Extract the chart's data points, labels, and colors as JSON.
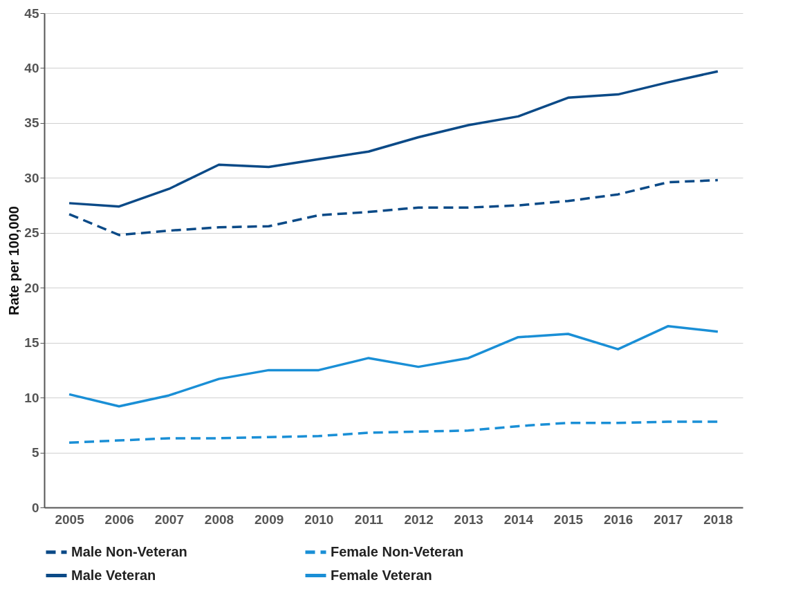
{
  "chart_data": {
    "type": "line",
    "ylabel": "Rate per 100,000",
    "categories": [
      "2005",
      "2006",
      "2007",
      "2008",
      "2009",
      "2010",
      "2011",
      "2012",
      "2013",
      "2014",
      "2015",
      "2016",
      "2017",
      "2018"
    ],
    "series": [
      {
        "name": "Male Non-Veteran",
        "color": "#0b4a87",
        "line_style": "dashed",
        "values": [
          26.7,
          24.8,
          25.2,
          25.5,
          25.6,
          26.6,
          26.9,
          27.3,
          27.3,
          27.5,
          27.9,
          28.5,
          29.6,
          29.8
        ]
      },
      {
        "name": "Female Non-Veteran",
        "color": "#1a8fd6",
        "line_style": "dashed",
        "values": [
          5.9,
          6.1,
          6.3,
          6.3,
          6.4,
          6.5,
          6.8,
          6.9,
          7.0,
          7.4,
          7.7,
          7.7,
          7.8,
          7.8
        ]
      },
      {
        "name": "Male Veteran",
        "color": "#0b4a87",
        "line_style": "solid",
        "values": [
          27.7,
          27.4,
          29.0,
          31.2,
          31.0,
          31.7,
          32.4,
          33.7,
          34.8,
          35.6,
          37.3,
          37.6,
          38.7,
          39.7
        ]
      },
      {
        "name": "Female Veteran",
        "color": "#1a8fd6",
        "line_style": "solid",
        "values": [
          10.3,
          9.2,
          10.2,
          11.7,
          12.5,
          12.5,
          13.6,
          12.8,
          13.6,
          15.5,
          15.8,
          14.4,
          16.5,
          16.0
        ]
      }
    ],
    "ylim": [
      0,
      45
    ],
    "yticks": [
      0,
      5,
      10,
      15,
      20,
      25,
      30,
      35,
      40,
      45
    ],
    "grid": "y",
    "legend": "bottom",
    "marker": "none"
  }
}
